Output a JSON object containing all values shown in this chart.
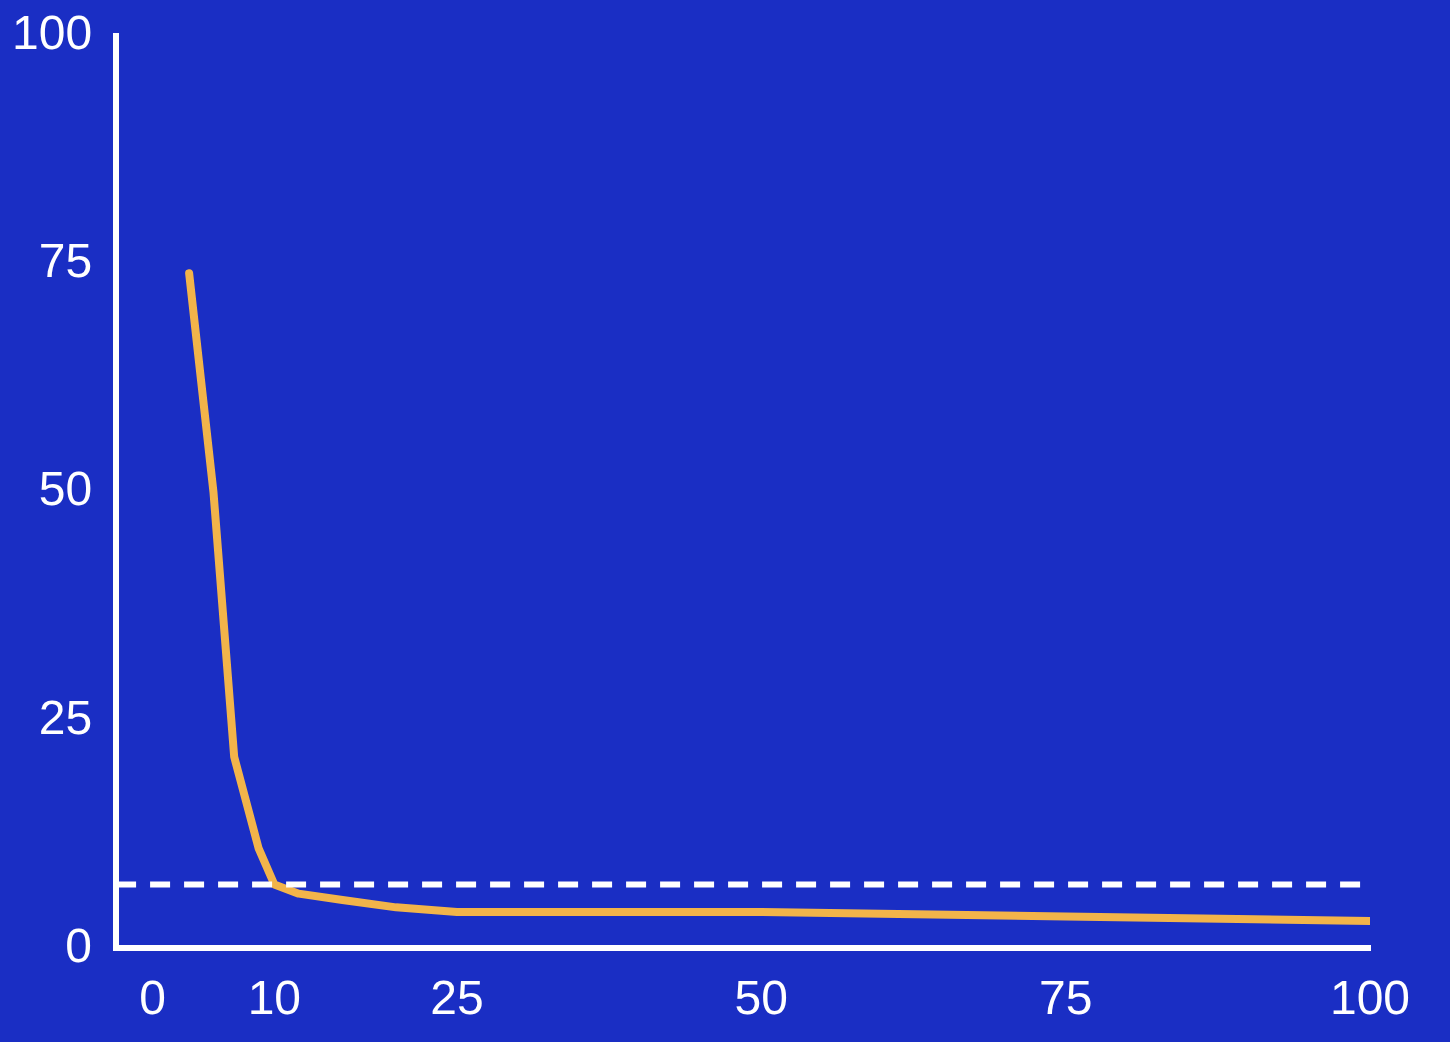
{
  "chart_data": {
    "type": "line",
    "x": [
      3,
      5,
      6.7,
      8.7,
      10,
      12,
      15.6,
      20,
      25,
      35,
      50,
      75,
      100
    ],
    "series": [
      {
        "color": "#f2b44a",
        "values": [
          74,
          50,
          21,
          11,
          7,
          6,
          5.3,
          4.5,
          4,
          4,
          4,
          3.5,
          3
        ]
      }
    ],
    "xlim": [
      -3,
      100
    ],
    "xticks": [
      0,
      10,
      25,
      50,
      75,
      100
    ],
    "ylim": [
      0,
      100
    ],
    "yticks": [
      0,
      25,
      50,
      75,
      100
    ],
    "grid": false,
    "legend": false,
    "marker": "none",
    "line_style": "solid",
    "ref_lines": [
      {
        "axis": "y",
        "value": 7,
        "color": "#ffffff",
        "line_style": "dashed"
      }
    ]
  }
}
